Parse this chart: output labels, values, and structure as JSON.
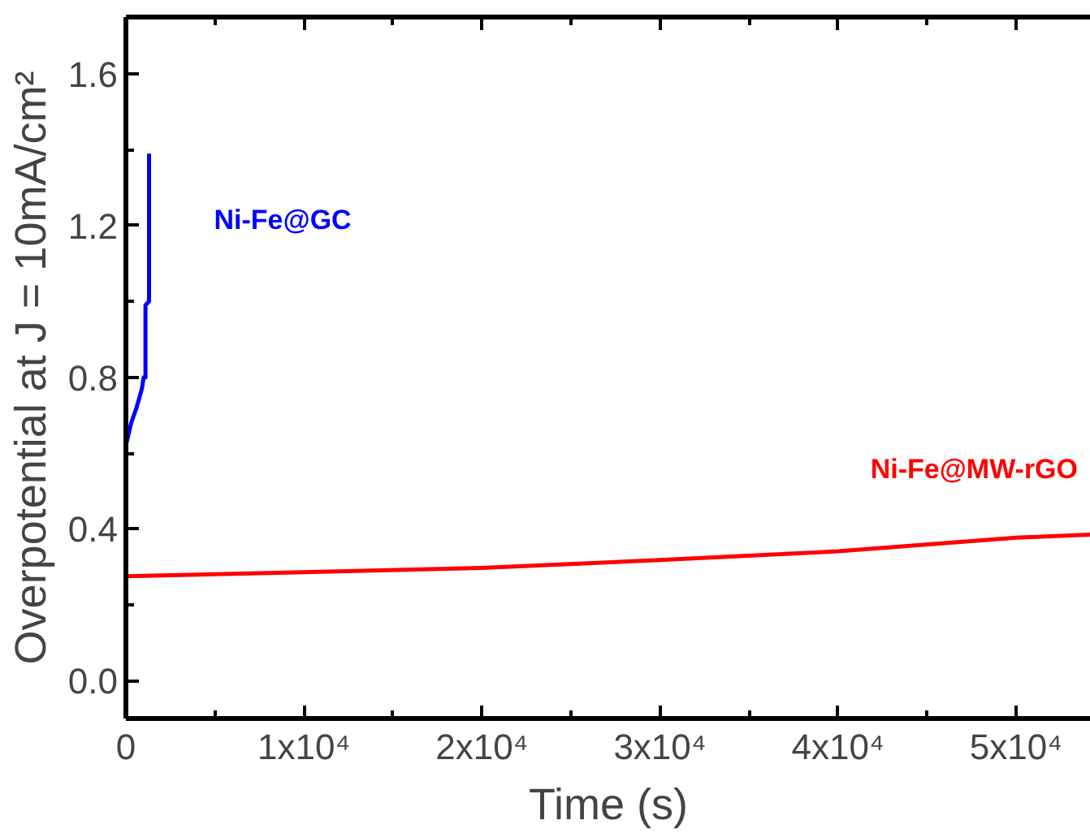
{
  "chart_data": {
    "type": "line",
    "xlabel": "Time (s)",
    "ylabel": "Overpotential at J = 10mA/cm²",
    "xlim": [
      0,
      54200
    ],
    "ylim": [
      -0.1,
      1.75
    ],
    "xticks": [
      0,
      {
        "value": 10000,
        "label": "1x10⁴"
      },
      {
        "value": 20000,
        "label": "2x10⁴"
      },
      {
        "value": 30000,
        "label": "3x10⁴"
      },
      {
        "value": 40000,
        "label": "4x10⁴"
      },
      {
        "value": 50000,
        "label": "5x10⁴"
      }
    ],
    "yticks": [
      {
        "value": 0,
        "label": "0.0"
      },
      0.4,
      0.8,
      1.2,
      1.6
    ],
    "grid": false,
    "marker": "none",
    "line_style": "solid",
    "series": [
      {
        "name": "Ni-Fe@GC",
        "color": "#0000ff",
        "x": [
          0,
          300,
          600,
          900,
          1000,
          1100,
          1100,
          1300,
          1300
        ],
        "values": [
          0.62,
          0.68,
          0.72,
          0.77,
          0.8,
          0.8,
          0.99,
          1.0,
          1.39
        ]
      },
      {
        "name": "Ni-Fe@MW-rGO",
        "color": "#ff0000",
        "x": [
          0,
          10000,
          20000,
          30000,
          40000,
          50000,
          54200
        ],
        "values": [
          0.275,
          0.286,
          0.297,
          0.318,
          0.341,
          0.377,
          0.385
        ]
      }
    ]
  }
}
